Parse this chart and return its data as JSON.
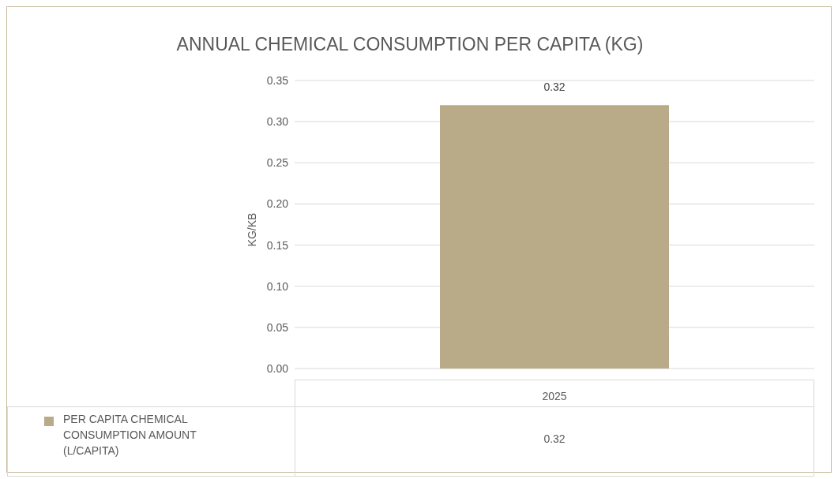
{
  "chart_data": {
    "type": "bar",
    "title": "ANNUAL CHEMICAL CONSUMPTION PER CAPITA (KG)",
    "ylabel": "KG/KB",
    "categories": [
      "2025"
    ],
    "series": [
      {
        "name": "PER CAPITA CHEMICAL CONSUMPTION AMOUNT (L/CAPITA)",
        "color": "#b9aa88",
        "values": [
          0.32
        ]
      }
    ],
    "ylim": [
      0,
      0.35
    ],
    "yticks": [
      {
        "value": 0,
        "label": "0.00"
      },
      {
        "value": 0.05,
        "label": "0.05"
      },
      {
        "value": 0.1,
        "label": "0.10"
      },
      {
        "value": 0.15,
        "label": "0.15"
      },
      {
        "value": 0.2,
        "label": "0.20"
      },
      {
        "value": 0.25,
        "label": "0.25"
      },
      {
        "value": 0.3,
        "label": "0.30"
      },
      {
        "value": 0.35,
        "label": "0.35"
      }
    ],
    "annotations": [
      "0.32"
    ],
    "grid": "y",
    "legend": "bottom",
    "data_labels": true
  }
}
